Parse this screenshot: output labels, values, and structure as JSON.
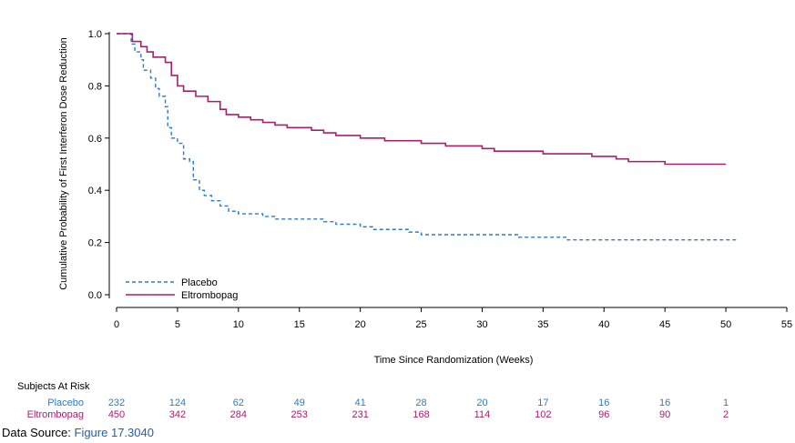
{
  "colors": {
    "placebo": "#2e7bbf",
    "eltrombopag": "#a3236b",
    "link": "#1f5fb3",
    "axis": "#000000"
  },
  "chart_data": {
    "type": "line",
    "xlabel": "Time Since Randomization (Weeks)",
    "ylabel": "Cumulative Probability of First Interferon Dose Reduction",
    "xlim": [
      0,
      55
    ],
    "ylim": [
      0.0,
      1.0
    ],
    "x_ticks": [
      0,
      5,
      10,
      15,
      20,
      25,
      30,
      35,
      40,
      45,
      50,
      55
    ],
    "y_ticks": [
      "0.0",
      "0.2",
      "0.4",
      "0.6",
      "0.8",
      "1.0"
    ],
    "grid": false,
    "legend_position": "bottom-left",
    "series": [
      {
        "name": "Placebo",
        "style": "dashed",
        "points": [
          [
            0,
            1.0
          ],
          [
            1.0,
            1.0
          ],
          [
            1.2,
            0.96
          ],
          [
            1.5,
            0.93
          ],
          [
            2.0,
            0.9
          ],
          [
            2.2,
            0.86
          ],
          [
            2.8,
            0.83
          ],
          [
            3.2,
            0.79
          ],
          [
            3.5,
            0.76
          ],
          [
            4.0,
            0.72
          ],
          [
            4.2,
            0.64
          ],
          [
            4.5,
            0.6
          ],
          [
            5.0,
            0.58
          ],
          [
            5.5,
            0.52
          ],
          [
            6.0,
            0.51
          ],
          [
            6.3,
            0.44
          ],
          [
            6.8,
            0.4
          ],
          [
            7.2,
            0.38
          ],
          [
            7.8,
            0.36
          ],
          [
            8.5,
            0.34
          ],
          [
            9.2,
            0.32
          ],
          [
            10,
            0.31
          ],
          [
            12,
            0.3
          ],
          [
            13,
            0.29
          ],
          [
            17,
            0.28
          ],
          [
            18,
            0.27
          ],
          [
            20,
            0.26
          ],
          [
            21,
            0.25
          ],
          [
            24,
            0.24
          ],
          [
            25,
            0.23
          ],
          [
            30,
            0.23
          ],
          [
            33,
            0.22
          ],
          [
            37,
            0.21
          ],
          [
            51,
            0.21
          ]
        ]
      },
      {
        "name": "Eltrombopag",
        "style": "solid",
        "points": [
          [
            0,
            1.0
          ],
          [
            1.0,
            1.0
          ],
          [
            1.3,
            0.97
          ],
          [
            2.0,
            0.95
          ],
          [
            2.5,
            0.93
          ],
          [
            3.0,
            0.91
          ],
          [
            4.0,
            0.89
          ],
          [
            4.5,
            0.84
          ],
          [
            5.0,
            0.8
          ],
          [
            5.5,
            0.78
          ],
          [
            6.5,
            0.76
          ],
          [
            7.5,
            0.74
          ],
          [
            8.5,
            0.71
          ],
          [
            9.0,
            0.69
          ],
          [
            10,
            0.68
          ],
          [
            11,
            0.67
          ],
          [
            12,
            0.66
          ],
          [
            13,
            0.65
          ],
          [
            14,
            0.64
          ],
          [
            16,
            0.63
          ],
          [
            17,
            0.62
          ],
          [
            18,
            0.61
          ],
          [
            20,
            0.6
          ],
          [
            22,
            0.59
          ],
          [
            24,
            0.59
          ],
          [
            25,
            0.58
          ],
          [
            27,
            0.57
          ],
          [
            30,
            0.56
          ],
          [
            31,
            0.55
          ],
          [
            34,
            0.55
          ],
          [
            35,
            0.54
          ],
          [
            38,
            0.54
          ],
          [
            39,
            0.53
          ],
          [
            41,
            0.52
          ],
          [
            42,
            0.51
          ],
          [
            44,
            0.51
          ],
          [
            45,
            0.5
          ],
          [
            50,
            0.5
          ]
        ]
      }
    ],
    "subjects_at_risk": {
      "title": "Subjects At Risk",
      "x": [
        0,
        5,
        10,
        15,
        20,
        25,
        30,
        35,
        40,
        45,
        50
      ],
      "rows": [
        {
          "name": "Placebo",
          "counts": [
            "232",
            "124",
            "62",
            "49",
            "41",
            "28",
            "20",
            "17",
            "16",
            "16",
            "1"
          ]
        },
        {
          "name": "Eltrombopag",
          "counts": [
            "450",
            "342",
            "284",
            "253",
            "231",
            "168",
            "114",
            "102",
            "96",
            "90",
            "2"
          ]
        }
      ]
    }
  },
  "footer": {
    "data_source_label": "Data Source: ",
    "data_source_link": "Figure 17.3040"
  }
}
